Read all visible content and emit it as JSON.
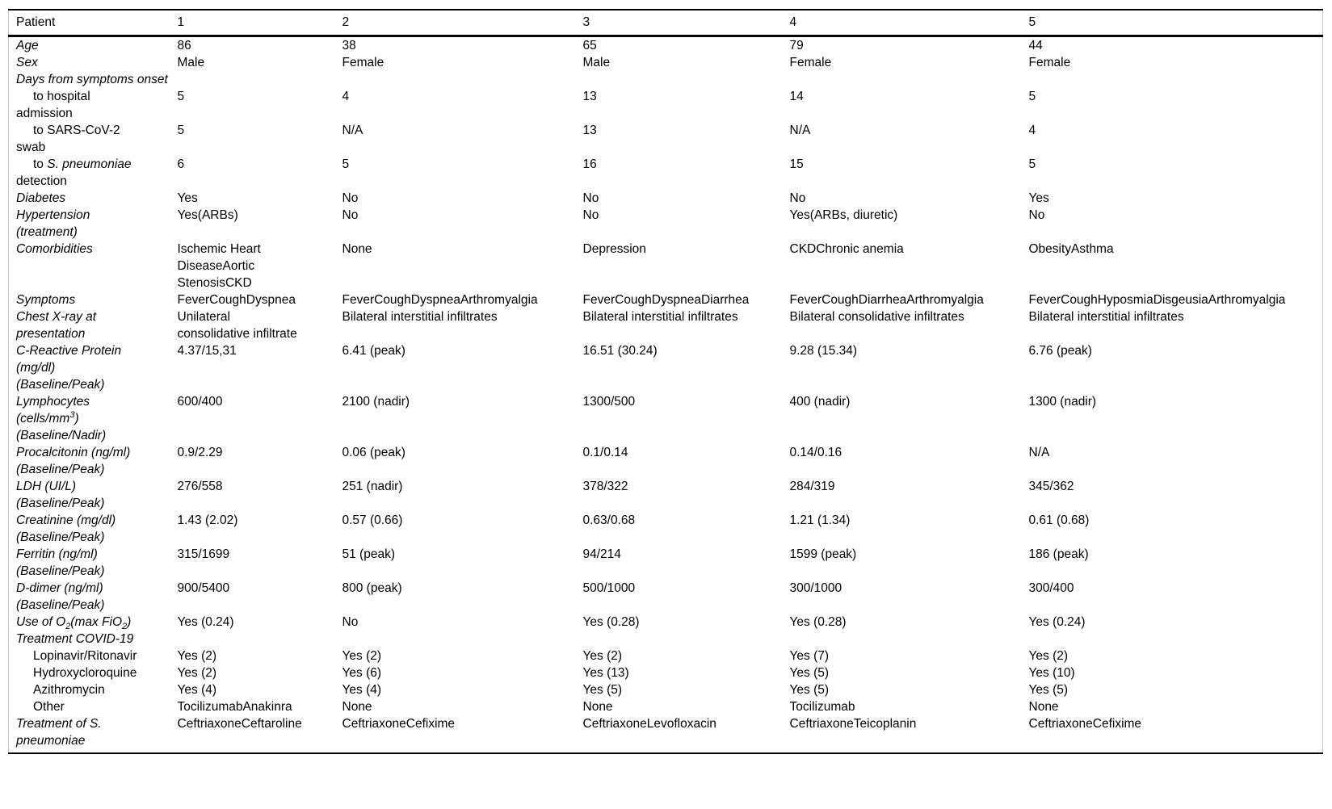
{
  "page": {
    "background_color": "#ffffff",
    "text_color": "#000000",
    "rule_color": "#000000",
    "side_border_color": "#c4c4c4"
  },
  "table": {
    "header": {
      "label": "Patient",
      "columns": [
        "1",
        "2",
        "3",
        "4",
        "5"
      ]
    },
    "rows": [
      {
        "id": "age",
        "style": "italic",
        "label": [
          {
            "t": "Age"
          }
        ],
        "values": [
          "86",
          "38",
          "65",
          "79",
          "44"
        ]
      },
      {
        "id": "sex",
        "style": "italic",
        "label": [
          {
            "t": "Sex"
          }
        ],
        "values": [
          "Male",
          "Female",
          "Male",
          "Female",
          "Female"
        ]
      },
      {
        "id": "days-from-symptoms-onset",
        "style": "italic",
        "label": [
          {
            "t": "Days from symptoms onset"
          }
        ],
        "values": [
          "",
          "",
          "",
          "",
          ""
        ]
      },
      {
        "id": "to-hospital-admission",
        "style": "indent",
        "label": [
          {
            "t": "to hospital\nadmission"
          }
        ],
        "values": [
          "5",
          "4",
          "13",
          "14",
          "5"
        ]
      },
      {
        "id": "to-sars-cov-2-swab",
        "style": "indent",
        "label": [
          {
            "t": "to SARS-CoV-2\nswab"
          }
        ],
        "values": [
          "5",
          "N/A",
          "13",
          "N/A",
          "4"
        ]
      },
      {
        "id": "to-s-pneumoniae-detection",
        "style": "indent",
        "label": [
          {
            "t": "to "
          },
          {
            "t": "S. pneumoniae",
            "s": "i"
          },
          {
            "t": "\ndetection"
          }
        ],
        "values": [
          "6",
          "5",
          "16",
          "15",
          "5"
        ]
      },
      {
        "id": "diabetes",
        "style": "italic",
        "label": [
          {
            "t": "Diabetes"
          }
        ],
        "values": [
          "Yes",
          "No",
          "No",
          "No",
          "Yes"
        ]
      },
      {
        "id": "hypertension",
        "style": "italic",
        "label": [
          {
            "t": "Hypertension\n(treatment)"
          }
        ],
        "values": [
          "Yes(ARBs)",
          "No",
          "No",
          "Yes(ARBs, diuretic)",
          "No"
        ]
      },
      {
        "id": "comorbidities",
        "style": "italic",
        "label": [
          {
            "t": "Comorbidities"
          }
        ],
        "values": [
          "Ischemic Heart\nDiseaseAortic\nStenosisCKD",
          "None",
          "Depression",
          "CKDChronic anemia",
          "ObesityAsthma"
        ]
      },
      {
        "id": "symptoms",
        "style": "italic",
        "label": [
          {
            "t": "Symptoms"
          }
        ],
        "values": [
          "FeverCoughDyspnea",
          "FeverCoughDyspneaArthromyalgia",
          "FeverCoughDyspneaDiarrhea",
          "FeverCoughDiarrheaArthromyalgia",
          "FeverCoughHyposmiaDisgeusiaArthromyalgia"
        ]
      },
      {
        "id": "chest-xray",
        "style": "italic",
        "label": [
          {
            "t": "Chest X-ray at\npresentation"
          }
        ],
        "values": [
          "Unilateral\nconsolidative infiltrate",
          "Bilateral interstitial infiltrates",
          "Bilateral interstitial infiltrates",
          "Bilateral consolidative infiltrates",
          "Bilateral interstitial infiltrates"
        ]
      },
      {
        "id": "c-reactive-protein",
        "style": "italic",
        "label": [
          {
            "t": "C-Reactive Protein\n(mg/dl)\n(Baseline/Peak)"
          }
        ],
        "values": [
          "4.37/15,31",
          "6.41 (peak)",
          "16.51 (30.24)",
          "9.28 (15.34)",
          "6.76 (peak)"
        ]
      },
      {
        "id": "lymphocytes",
        "style": "italic",
        "label": [
          {
            "t": "Lymphocytes\n(cells/mm"
          },
          {
            "t": "3",
            "s": "sup"
          },
          {
            "t": ")\n(Baseline/Nadir)"
          }
        ],
        "values": [
          "600/400",
          "2100 (nadir)",
          "1300/500",
          "400 (nadir)",
          "1300 (nadir)"
        ]
      },
      {
        "id": "procalcitonin",
        "style": "italic",
        "label": [
          {
            "t": "Procalcitonin (ng/ml)\n(Baseline/Peak)"
          }
        ],
        "values": [
          "0.9/2.29",
          "0.06 (peak)",
          "0.1/0.14",
          "0.14/0.16",
          "N/A"
        ]
      },
      {
        "id": "ldh",
        "style": "italic",
        "label": [
          {
            "t": "LDH (UI/L)\n(Baseline/Peak)"
          }
        ],
        "values": [
          "276/558",
          "251 (nadir)",
          "378/322",
          "284/319",
          "345/362"
        ]
      },
      {
        "id": "creatinine",
        "style": "italic",
        "label": [
          {
            "t": "Creatinine (mg/dl)\n(Baseline/Peak)"
          }
        ],
        "values": [
          "1.43 (2.02)",
          "0.57 (0.66)",
          "0.63/0.68",
          "1.21 (1.34)",
          "0.61 (0.68)"
        ]
      },
      {
        "id": "ferritin",
        "style": "italic",
        "label": [
          {
            "t": "Ferritin (ng/ml)\n(Baseline/Peak)"
          }
        ],
        "values": [
          "315/1699",
          "51 (peak)",
          "94/214",
          "1599 (peak)",
          "186 (peak)"
        ]
      },
      {
        "id": "d-dimer",
        "style": "italic",
        "label": [
          {
            "t": "D-dimer (ng/ml)\n(Baseline/Peak)"
          }
        ],
        "values": [
          "900/5400",
          "800 (peak)",
          "500/1000",
          "300/1000",
          "300/400"
        ]
      },
      {
        "id": "use-of-o2",
        "style": "italic",
        "label": [
          {
            "t": "Use of O"
          },
          {
            "t": "2",
            "s": "sub"
          },
          {
            "t": "(max FiO"
          },
          {
            "t": "2",
            "s": "sub"
          },
          {
            "t": ")"
          }
        ],
        "values": [
          "Yes (0.24)",
          "No",
          "Yes (0.28)",
          "Yes (0.28)",
          "Yes (0.24)"
        ]
      },
      {
        "id": "treatment-covid-19",
        "style": "italic",
        "label": [
          {
            "t": "Treatment COVID-19"
          }
        ],
        "values": [
          "",
          "",
          "",
          "",
          ""
        ]
      },
      {
        "id": "lopinavir-ritonavir",
        "style": "indent",
        "label": [
          {
            "t": "Lopinavir/Ritonavir"
          }
        ],
        "values": [
          "Yes (2)",
          "Yes (2)",
          "Yes (2)",
          "Yes (7)",
          "Yes (2)"
        ]
      },
      {
        "id": "hydroxycloroquine",
        "style": "indent",
        "label": [
          {
            "t": "Hydroxycloroquine"
          }
        ],
        "values": [
          "Yes (2)",
          "Yes (6)",
          "Yes (13)",
          "Yes (5)",
          "Yes (10)"
        ]
      },
      {
        "id": "azithromycin",
        "style": "indent",
        "label": [
          {
            "t": "Azithromycin"
          }
        ],
        "values": [
          "Yes (4)",
          "Yes (4)",
          "Yes (5)",
          "Yes (5)",
          "Yes (5)"
        ]
      },
      {
        "id": "other",
        "style": "indent",
        "label": [
          {
            "t": "Other"
          }
        ],
        "values": [
          "TocilizumabAnakinra",
          "None",
          "None",
          "Tocilizumab",
          "None"
        ]
      },
      {
        "id": "treatment-s-pneumoniae",
        "style": "italic",
        "label": [
          {
            "t": "Treatment of S.\npneumoniae"
          }
        ],
        "values": [
          "CeftriaxoneCeftaroline",
          "CeftriaxoneCefixime",
          "CeftriaxoneLevofloxacin",
          "CeftriaxoneTeicoplanin",
          "CeftriaxoneCefixime"
        ]
      }
    ]
  }
}
